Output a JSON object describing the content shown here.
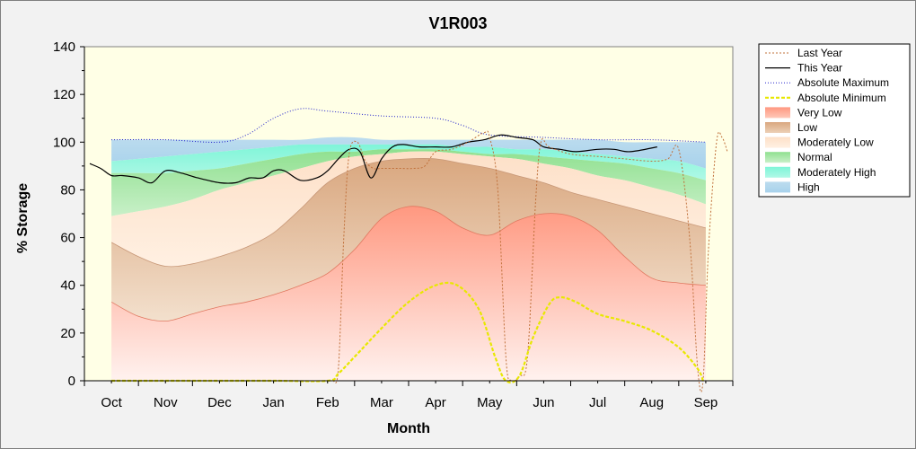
{
  "chart_data": {
    "type": "area",
    "title": "V1R003",
    "xlabel": "Month",
    "ylabel": "% Storage",
    "ylim": [
      0,
      140
    ],
    "yticks": [
      0,
      20,
      40,
      60,
      80,
      100,
      120,
      140
    ],
    "categories": [
      "Oct",
      "Nov",
      "Dec",
      "Jan",
      "Feb",
      "Mar",
      "Apr",
      "May",
      "Jun",
      "Jul",
      "Aug",
      "Sep"
    ],
    "x_range": [
      -0.5,
      11.5
    ],
    "legend_position": "right",
    "grid": false,
    "colors": {
      "last_year": "#c0703a",
      "this_year": "#000000",
      "abs_max": "#2020cc",
      "abs_min": "#e8e800",
      "very_low": "#ff9e8a",
      "low": "#d9b08c",
      "moderately_low": "#fde3cf",
      "normal": "#8fe08f",
      "moderately_high": "#7ff5d8",
      "high": "#a8d2ec",
      "plot_bg": "#ffffe6"
    },
    "legend": [
      {
        "key": "last_year",
        "label": "Last Year",
        "style": "dashed-line"
      },
      {
        "key": "this_year",
        "label": "This Year",
        "style": "line"
      },
      {
        "key": "abs_max",
        "label": "Absolute Maximum",
        "style": "dotted-line"
      },
      {
        "key": "abs_min",
        "label": "Absolute Minimum",
        "style": "dashed-thick-line"
      },
      {
        "key": "very_low",
        "label": "Very Low",
        "style": "fill"
      },
      {
        "key": "low",
        "label": "Low",
        "style": "fill"
      },
      {
        "key": "moderately_low",
        "label": "Moderately Low",
        "style": "fill"
      },
      {
        "key": "normal",
        "label": "Normal",
        "style": "fill"
      },
      {
        "key": "moderately_high",
        "label": "Moderately High",
        "style": "fill"
      },
      {
        "key": "high",
        "label": "High",
        "style": "fill"
      }
    ],
    "band_x": [
      0,
      0.5,
      1,
      1.5,
      2,
      2.5,
      3,
      3.5,
      4,
      4.5,
      5,
      5.5,
      6,
      6.5,
      7,
      7.5,
      8,
      8.5,
      9,
      9.5,
      10,
      10.5,
      11
    ],
    "bands": {
      "very_low_top": [
        33,
        27,
        25,
        28,
        31,
        33,
        36,
        40,
        45,
        55,
        68,
        73,
        71,
        64,
        61,
        67,
        70,
        69,
        63,
        52,
        43,
        41,
        40
      ],
      "low_top": [
        58,
        52,
        48,
        49,
        52,
        56,
        62,
        72,
        83,
        89,
        92,
        93,
        93,
        91,
        89,
        86,
        83,
        79,
        76,
        73,
        70,
        67,
        64
      ],
      "moderately_low_top": [
        69,
        71,
        73,
        76,
        80,
        83,
        86,
        89,
        92,
        94,
        95,
        96,
        96,
        95,
        94,
        93,
        91,
        89,
        86,
        84,
        81,
        78,
        74
      ],
      "normal_top": [
        87,
        87,
        87,
        88,
        89,
        91,
        93,
        95,
        96,
        96,
        97,
        97,
        97,
        96,
        95,
        95,
        94,
        93,
        92,
        91,
        89,
        87,
        84
      ],
      "moderately_high_top": [
        92,
        93,
        94,
        95,
        96,
        97,
        98,
        99,
        99,
        99,
        99,
        99,
        99,
        98,
        98,
        97,
        97,
        96,
        95,
        94,
        93,
        92,
        89
      ],
      "high_top": [
        101,
        101,
        101,
        101,
        101,
        101,
        101,
        101,
        102,
        102,
        101,
        101,
        101,
        101,
        101,
        101,
        101,
        101,
        101,
        100,
        100,
        100,
        100
      ]
    },
    "series": [
      {
        "key": "abs_max",
        "name": "Absolute Maximum",
        "points": [
          [
            0,
            101
          ],
          [
            1,
            101
          ],
          [
            2,
            100
          ],
          [
            2.5,
            103
          ],
          [
            3,
            110
          ],
          [
            3.5,
            114
          ],
          [
            4,
            113
          ],
          [
            5,
            111
          ],
          [
            6,
            110
          ],
          [
            6.5,
            107
          ],
          [
            7,
            103
          ],
          [
            8,
            102
          ],
          [
            9,
            101
          ],
          [
            10,
            101
          ],
          [
            11,
            100
          ]
        ]
      },
      {
        "key": "this_year",
        "name": "This Year",
        "points": [
          [
            -0.4,
            91
          ],
          [
            -0.2,
            89
          ],
          [
            0,
            86
          ],
          [
            0.2,
            86
          ],
          [
            0.5,
            85
          ],
          [
            0.75,
            83
          ],
          [
            1,
            88
          ],
          [
            1.3,
            87
          ],
          [
            1.6,
            85
          ],
          [
            2,
            83
          ],
          [
            2.3,
            83
          ],
          [
            2.55,
            85
          ],
          [
            2.8,
            85
          ],
          [
            3,
            88
          ],
          [
            3.2,
            88
          ],
          [
            3.5,
            84
          ],
          [
            3.8,
            85
          ],
          [
            4,
            88
          ],
          [
            4.2,
            93
          ],
          [
            4.4,
            97
          ],
          [
            4.6,
            96
          ],
          [
            4.8,
            85
          ],
          [
            5,
            93
          ],
          [
            5.2,
            98
          ],
          [
            5.4,
            99
          ],
          [
            5.7,
            98
          ],
          [
            6,
            98
          ],
          [
            6.3,
            98
          ],
          [
            6.6,
            100
          ],
          [
            6.9,
            101
          ],
          [
            7.2,
            103
          ],
          [
            7.5,
            102
          ],
          [
            7.8,
            101
          ],
          [
            8,
            98
          ],
          [
            8.3,
            97
          ],
          [
            8.6,
            96
          ],
          [
            9,
            97
          ],
          [
            9.3,
            97
          ],
          [
            9.6,
            96
          ],
          [
            10.1,
            98
          ]
        ]
      },
      {
        "key": "last_year",
        "name": "Last Year",
        "points": [
          [
            4.1,
            0
          ],
          [
            4.2,
            5
          ],
          [
            4.3,
            60
          ],
          [
            4.4,
            95
          ],
          [
            4.55,
            100
          ],
          [
            4.7,
            92
          ],
          [
            4.85,
            89
          ],
          [
            5,
            89
          ],
          [
            5.3,
            89
          ],
          [
            5.6,
            89
          ],
          [
            5.8,
            90
          ],
          [
            6,
            96
          ],
          [
            6.3,
            97
          ],
          [
            6.6,
            100
          ],
          [
            6.9,
            104
          ],
          [
            7.0,
            102
          ],
          [
            7.15,
            80
          ],
          [
            7.3,
            10
          ],
          [
            7.4,
            0
          ],
          [
            7.55,
            2
          ],
          [
            7.7,
            10
          ],
          [
            7.85,
            75
          ],
          [
            7.95,
            100
          ],
          [
            8.1,
            98
          ],
          [
            8.5,
            95
          ],
          [
            9,
            94
          ],
          [
            9.5,
            93
          ],
          [
            10,
            92
          ],
          [
            10.3,
            93
          ],
          [
            10.5,
            97
          ],
          [
            10.7,
            60
          ],
          [
            10.85,
            5
          ],
          [
            10.95,
            0
          ],
          [
            11.05,
            55
          ],
          [
            11.2,
            100
          ],
          [
            11.3,
            102
          ],
          [
            11.4,
            96
          ]
        ]
      },
      {
        "key": "abs_min",
        "name": "Absolute Minimum",
        "points": [
          [
            0,
            0
          ],
          [
            1,
            0
          ],
          [
            2,
            0
          ],
          [
            3,
            0
          ],
          [
            4,
            0
          ],
          [
            4.2,
            3
          ],
          [
            4.5,
            10
          ],
          [
            5,
            22
          ],
          [
            5.5,
            33
          ],
          [
            6,
            40
          ],
          [
            6.4,
            40
          ],
          [
            6.8,
            30
          ],
          [
            7.1,
            10
          ],
          [
            7.3,
            0
          ],
          [
            7.55,
            2
          ],
          [
            7.8,
            18
          ],
          [
            8.1,
            32
          ],
          [
            8.3,
            35
          ],
          [
            8.6,
            33
          ],
          [
            9,
            28
          ],
          [
            9.5,
            25
          ],
          [
            10,
            21
          ],
          [
            10.5,
            14
          ],
          [
            10.85,
            5
          ],
          [
            10.95,
            0
          ]
        ]
      }
    ]
  }
}
